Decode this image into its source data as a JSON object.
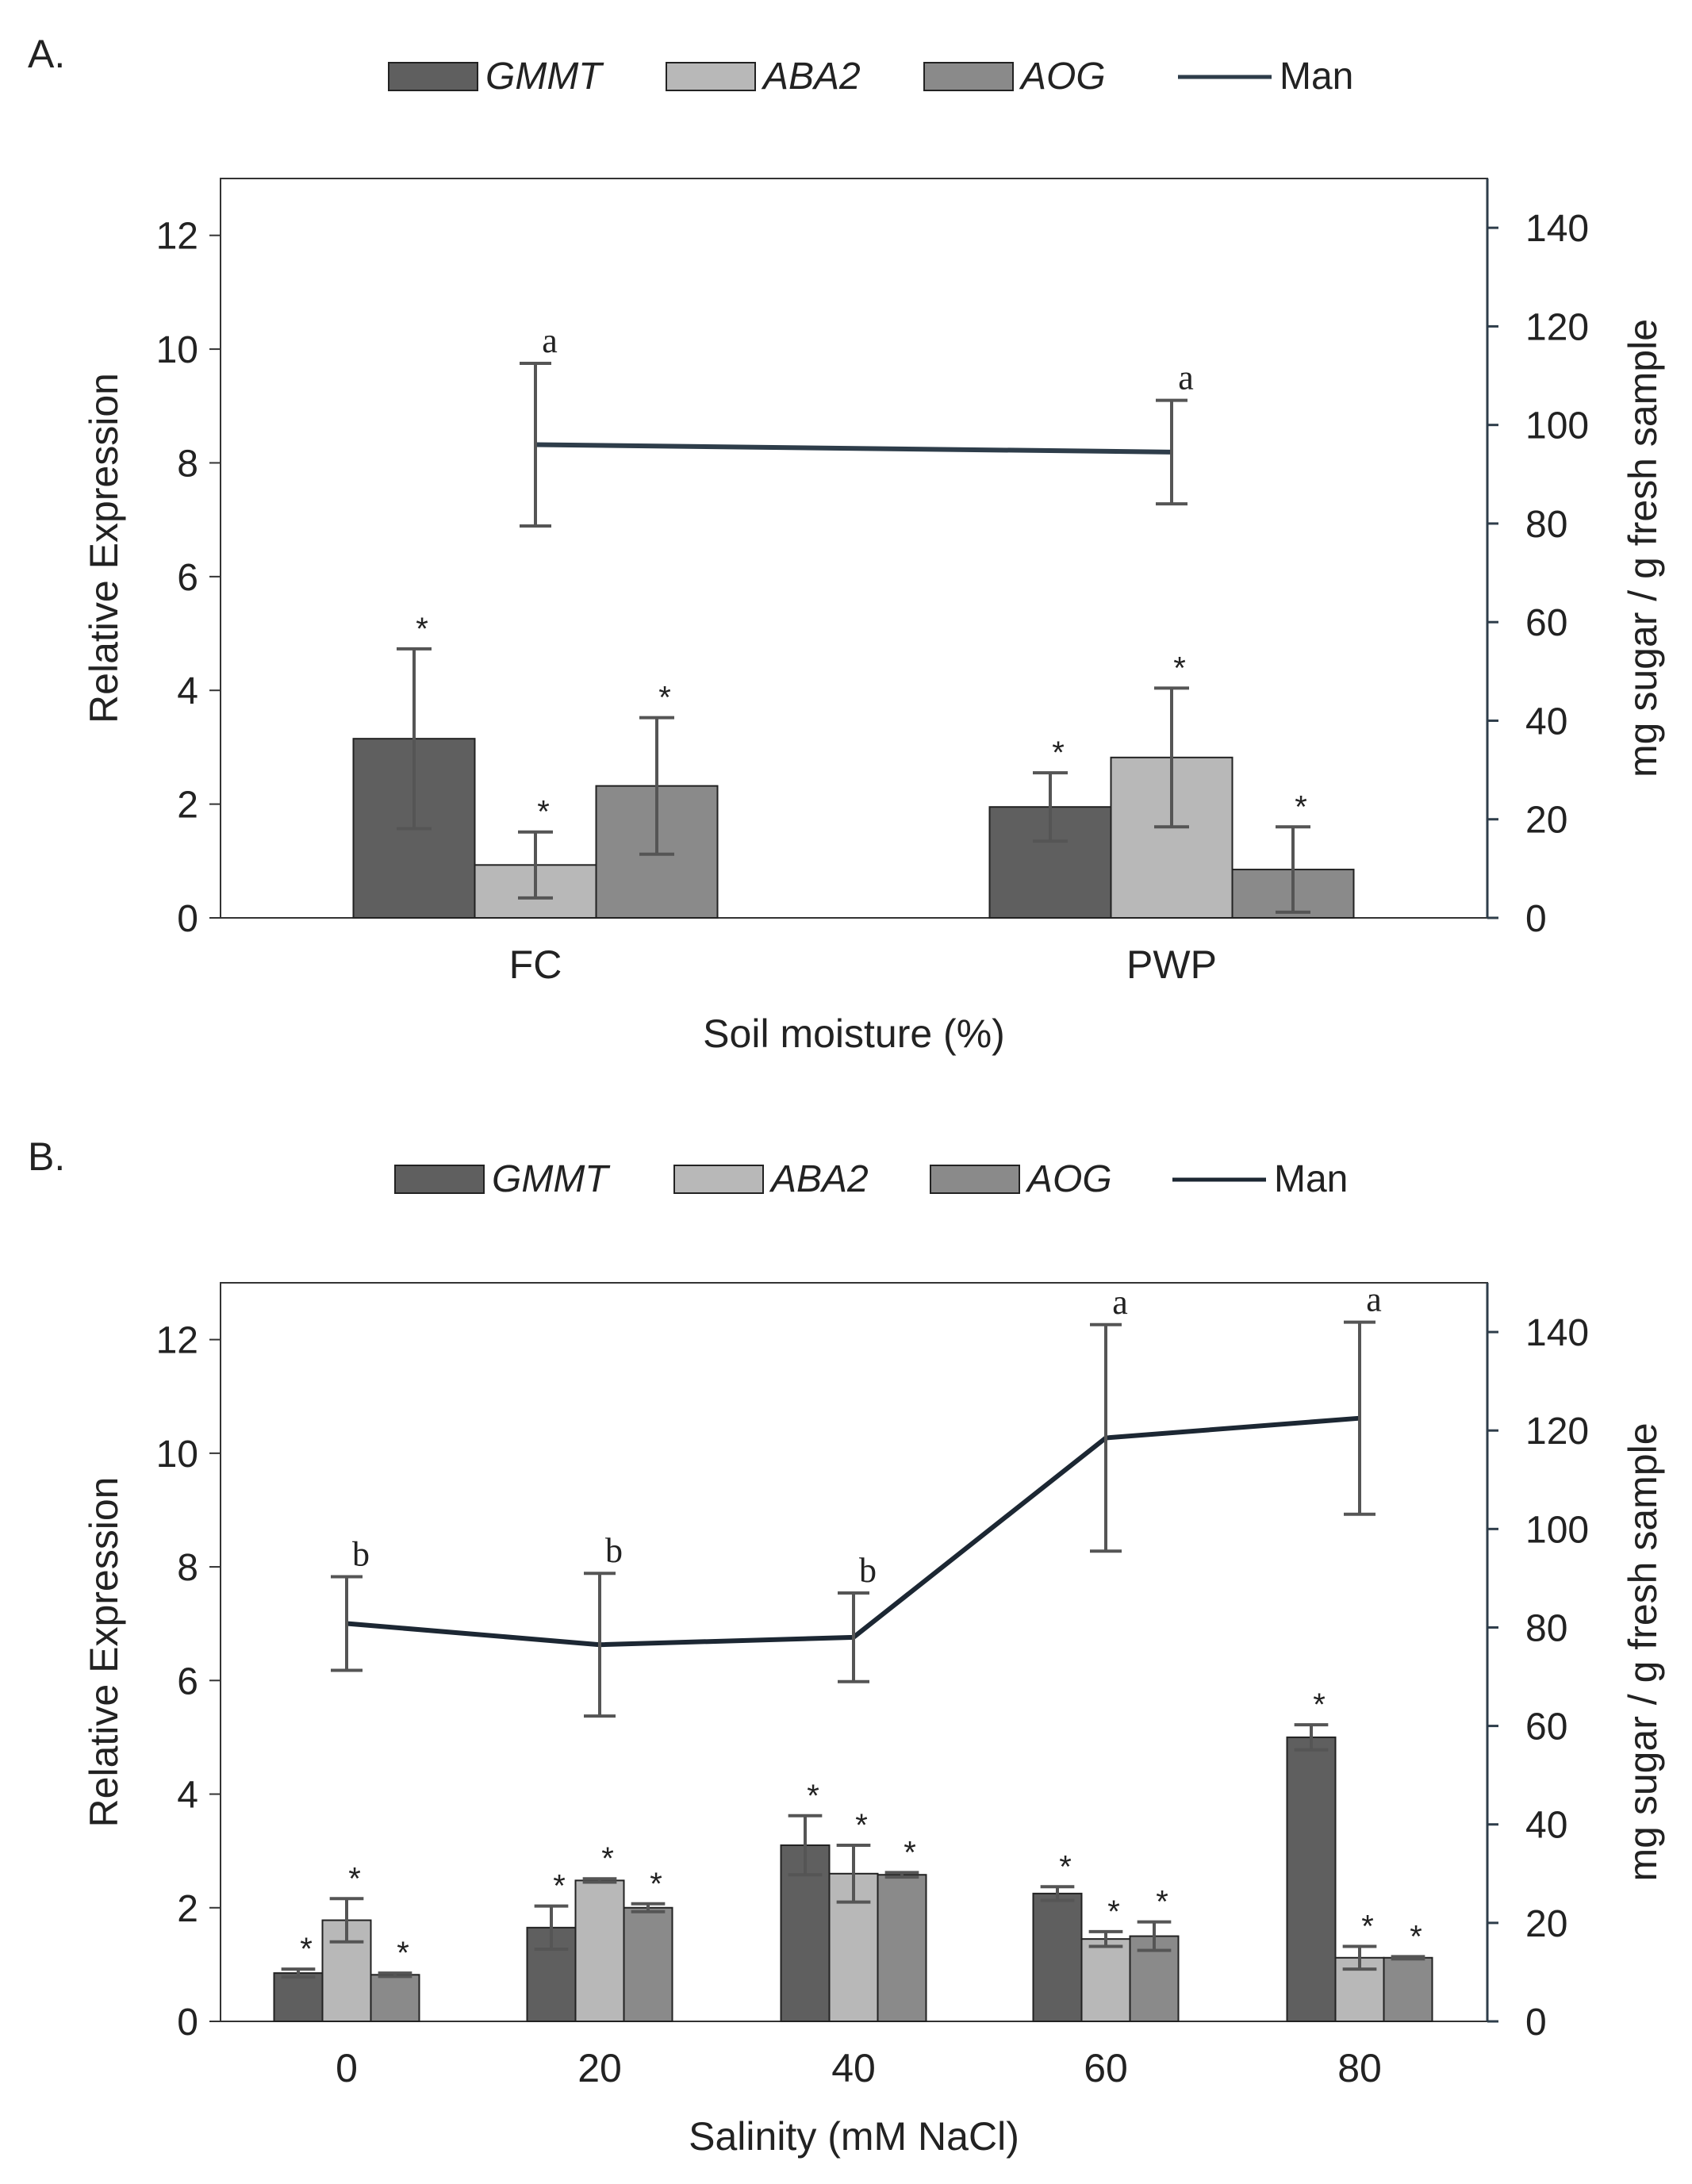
{
  "chart_data": [
    {
      "panel_label": "A.",
      "type": "bar",
      "xlabel": "Soil moisture (%)",
      "ylabel": "Relative Expression",
      "y2label": "mg sugar / g fresh sample",
      "ylim": [
        0,
        13
      ],
      "yticks": [
        0,
        2,
        4,
        6,
        8,
        10,
        12
      ],
      "y2lim": [
        0,
        150
      ],
      "y2ticks": [
        0,
        20,
        40,
        60,
        80,
        100,
        120,
        140
      ],
      "categories": [
        "FC",
        "PWP"
      ],
      "legend": [
        "GMMT",
        "ABA2",
        "AOG",
        "Man"
      ],
      "series": [
        {
          "name": "GMMT",
          "color": "#5f5f5f",
          "values": [
            3.15,
            1.95
          ],
          "errors": [
            1.58,
            0.6
          ],
          "marks": [
            "*",
            "*"
          ]
        },
        {
          "name": "ABA2",
          "color": "#b8b8b8",
          "values": [
            0.93,
            2.82
          ],
          "errors": [
            0.58,
            1.22
          ],
          "marks": [
            "*",
            "*"
          ]
        },
        {
          "name": "AOG",
          "color": "#8a8a8a",
          "values": [
            2.32,
            0.85
          ],
          "errors": [
            1.2,
            0.75
          ],
          "marks": [
            "*",
            "*"
          ]
        }
      ],
      "line": {
        "name": "Man",
        "color": "#2e3d4a",
        "axis": "right",
        "values": [
          96,
          94.5
        ],
        "errors": [
          16.5,
          10.5
        ],
        "marks": [
          "a",
          "a"
        ]
      }
    },
    {
      "panel_label": "B.",
      "type": "bar",
      "xlabel": "Salinity (mM NaCl)",
      "ylabel": "Relative Expression",
      "y2label": "mg sugar / g fresh sample",
      "ylim": [
        0,
        13
      ],
      "yticks": [
        0,
        2,
        4,
        6,
        8,
        10,
        12
      ],
      "y2lim": [
        0,
        150
      ],
      "y2ticks": [
        0,
        20,
        40,
        60,
        80,
        100,
        120,
        140
      ],
      "categories": [
        "0",
        "20",
        "40",
        "60",
        "80"
      ],
      "legend": [
        "GMMT",
        "ABA2",
        "AOG",
        "Man"
      ],
      "series": [
        {
          "name": "GMMT",
          "color": "#5f5f5f",
          "values": [
            0.85,
            1.65,
            3.1,
            2.25,
            5.0
          ],
          "errors": [
            0.07,
            0.38,
            0.52,
            0.12,
            0.22
          ],
          "marks": [
            "*",
            "*",
            "*",
            "*",
            "*"
          ]
        },
        {
          "name": "ABA2",
          "color": "#b8b8b8",
          "values": [
            1.78,
            2.48,
            2.6,
            1.45,
            1.12
          ],
          "errors": [
            0.38,
            0.03,
            0.5,
            0.13,
            0.2
          ],
          "marks": [
            "*",
            "*",
            "*",
            "*",
            "*"
          ]
        },
        {
          "name": "AOG",
          "color": "#8a8a8a",
          "values": [
            0.82,
            2.0,
            2.58,
            1.5,
            1.12
          ],
          "errors": [
            0.03,
            0.07,
            0.04,
            0.25,
            0.02
          ],
          "marks": [
            "*",
            "*",
            "*",
            "*",
            "*"
          ]
        }
      ],
      "line": {
        "name": "Man",
        "color": "#1c2733",
        "axis": "right",
        "values": [
          80.8,
          76.5,
          78,
          118.5,
          122.5
        ],
        "errors": [
          9.5,
          14.5,
          9,
          23,
          19.5
        ],
        "marks": [
          "b",
          "b",
          "b",
          "a",
          "a"
        ]
      }
    }
  ]
}
